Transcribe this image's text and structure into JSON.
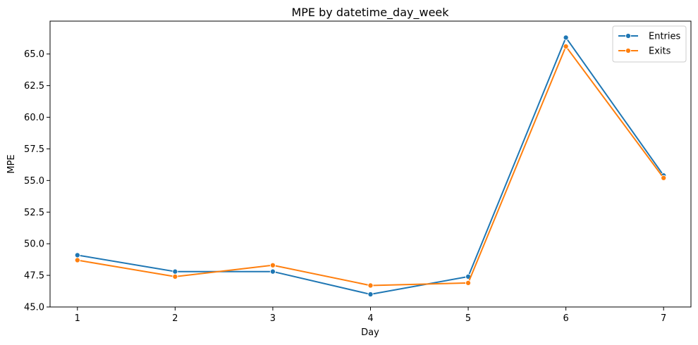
{
  "chart_data": {
    "type": "line",
    "title": "MPE by datetime_day_week",
    "xlabel": "Day",
    "ylabel": "MPE",
    "x": [
      1,
      2,
      3,
      4,
      5,
      6,
      7
    ],
    "xlim": [
      0.72,
      7.28
    ],
    "ylim": [
      45.0,
      67.6
    ],
    "yticks": [
      45.0,
      47.5,
      50.0,
      52.5,
      55.0,
      57.5,
      60.0,
      62.5,
      65.0
    ],
    "ytick_labels": [
      "45.0",
      "47.5",
      "50.0",
      "52.5",
      "55.0",
      "57.5",
      "60.0",
      "62.5",
      "65.0"
    ],
    "xtick_labels": [
      "1",
      "2",
      "3",
      "4",
      "5",
      "6",
      "7"
    ],
    "grid": false,
    "legend_position": "top-right",
    "series": [
      {
        "name": "Entries",
        "color": "#1f77b4",
        "marker": "circle",
        "values": [
          49.1,
          47.8,
          47.8,
          46.0,
          47.4,
          66.3,
          55.4
        ]
      },
      {
        "name": "Exits",
        "color": "#ff7f0e",
        "marker": "circle",
        "values": [
          48.7,
          47.4,
          48.3,
          46.7,
          46.9,
          65.6,
          55.2
        ]
      }
    ]
  }
}
